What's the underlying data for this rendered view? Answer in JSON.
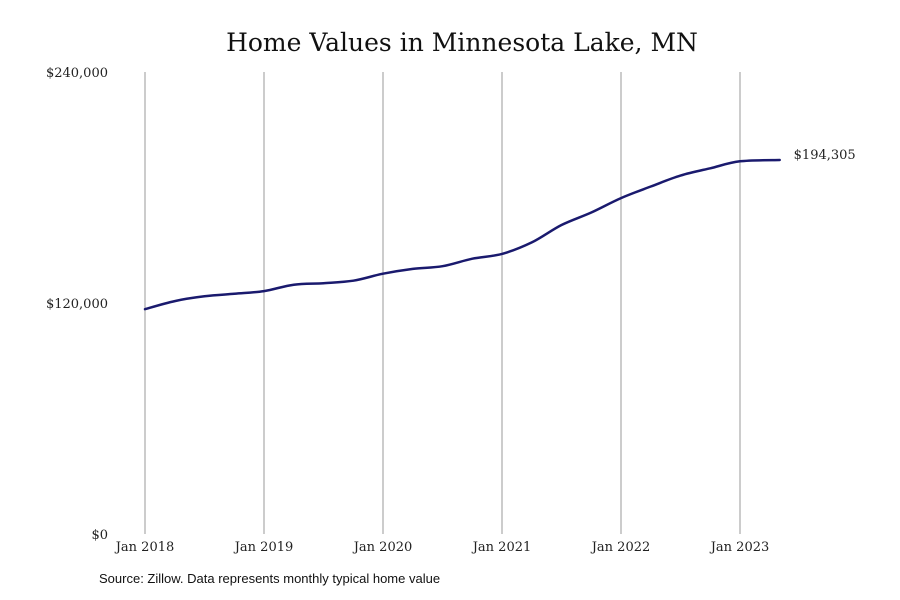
{
  "source_note": "Source: Zillow. Data represents monthly typical home value",
  "colors": {
    "line": "#1a1a6e",
    "grid": "#9a9a9a"
  },
  "chart_data": {
    "type": "line",
    "title": "Home Values in Minnesota Lake, MN",
    "xlabel": "",
    "ylabel": "",
    "ylim": [
      0,
      240000
    ],
    "grid": {
      "vertical": true,
      "horizontal": false
    },
    "y_ticks": [
      {
        "value": 0,
        "label": "$0"
      },
      {
        "value": 120000,
        "label": "$120,000"
      },
      {
        "value": 240000,
        "label": "$240,000"
      }
    ],
    "x_ticks": [
      {
        "value": "2018-01",
        "label": "Jan 2018"
      },
      {
        "value": "2019-01",
        "label": "Jan 2019"
      },
      {
        "value": "2020-01",
        "label": "Jan 2020"
      },
      {
        "value": "2021-01",
        "label": "Jan 2021"
      },
      {
        "value": "2022-01",
        "label": "Jan 2022"
      },
      {
        "value": "2023-01",
        "label": "Jan 2023"
      }
    ],
    "end_label": "$194,305",
    "series": [
      {
        "x": [
          "2018-01",
          "2018-04",
          "2018-07",
          "2018-10",
          "2019-01",
          "2019-04",
          "2019-07",
          "2019-10",
          "2020-01",
          "2020-04",
          "2020-07",
          "2020-10",
          "2021-01",
          "2021-04",
          "2021-07",
          "2021-10",
          "2022-01",
          "2022-04",
          "2022-07",
          "2022-10",
          "2023-01",
          "2023-05"
        ],
        "values": [
          116800,
          121000,
          123500,
          124800,
          126200,
          129500,
          130300,
          131600,
          135200,
          137700,
          139100,
          143000,
          145500,
          151500,
          160500,
          167000,
          174500,
          180500,
          186200,
          190000,
          193600,
          194305
        ]
      }
    ]
  }
}
